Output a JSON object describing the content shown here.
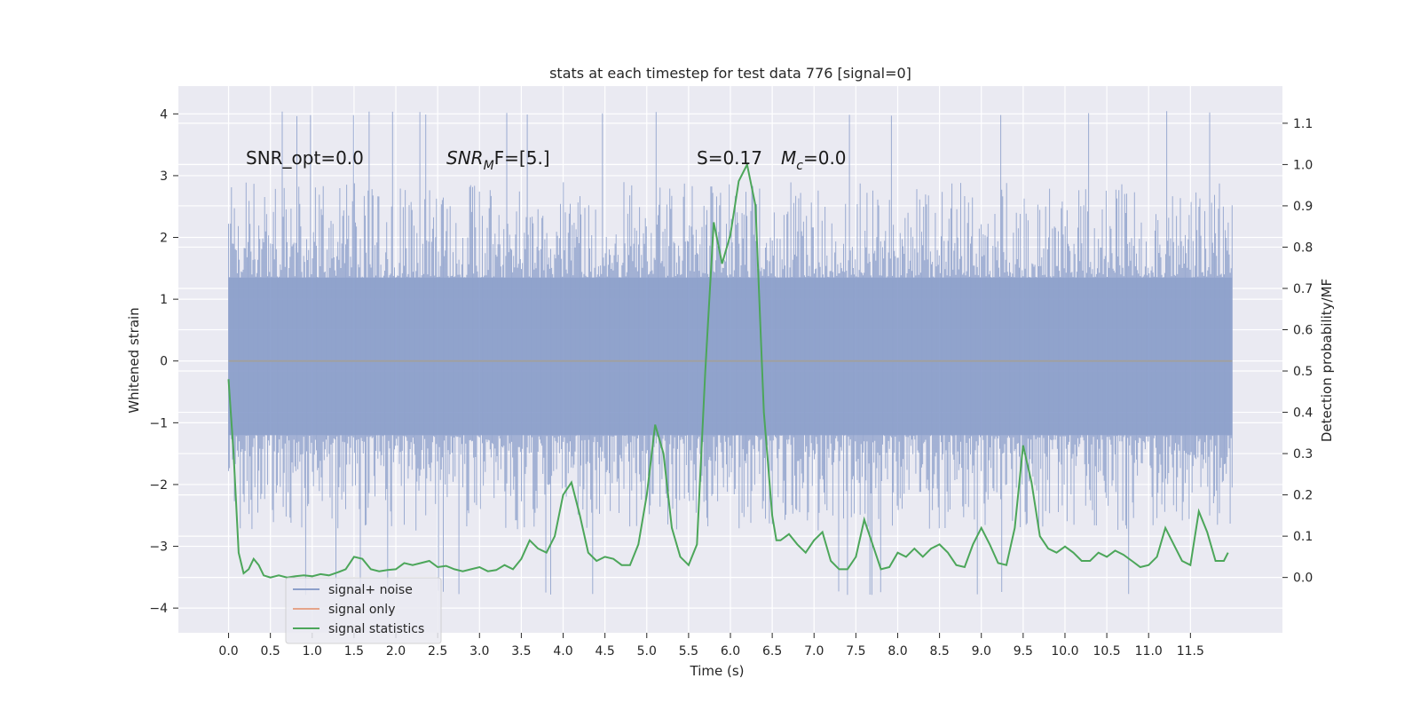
{
  "chart_data": {
    "type": "line",
    "title": "stats at each timestep for test data 776 [signal=0]",
    "xlabel": "Time (s)",
    "ylabel_left": "Whitened strain",
    "ylabel_right": "Detection probability/MF",
    "xlim": [
      -0.6,
      12.6
    ],
    "ylim_left": [
      -4.4,
      4.45
    ],
    "ylim_right": [
      -0.134,
      1.19
    ],
    "xticks": [
      "0.0",
      "0.5",
      "1.0",
      "1.5",
      "2.0",
      "2.5",
      "3.0",
      "3.5",
      "4.0",
      "4.5",
      "5.0",
      "5.5",
      "6.0",
      "6.5",
      "7.0",
      "7.5",
      "8.0",
      "8.5",
      "9.0",
      "9.5",
      "10.0",
      "10.5",
      "11.0",
      "11.5"
    ],
    "yticks_left": [
      "4",
      "3",
      "2",
      "1",
      "0",
      "−1",
      "−2",
      "−3",
      "−4"
    ],
    "yticks_right": [
      "1.1",
      "1.0",
      "0.9",
      "0.8",
      "0.7",
      "0.6",
      "0.5",
      "0.4",
      "0.3",
      "0.2",
      "0.1",
      "0.0"
    ],
    "grid": true,
    "legend_position": "lower-left",
    "annotations": [
      {
        "text": "SNR_opt=0.0"
      },
      {
        "text": "SNR",
        "sub": "M",
        "rest": "F=[5.]"
      },
      {
        "text": "S=0.17"
      },
      {
        "text": "M",
        "sub": "c",
        "rest": "=0.0"
      }
    ],
    "series": [
      {
        "name": "signal+ noise",
        "axis": "left",
        "color": "#8da0cb",
        "description": "whitened noise, dense samples 0.0 to 12.0 s",
        "envelope_core": [
          -1.2,
          1.35
        ],
        "range": [
          -3.8,
          4.1
        ]
      },
      {
        "name": "signal only",
        "axis": "left",
        "color": "#e5a48a",
        "x": [
          0.0,
          12.0
        ],
        "y": [
          0.0,
          0.0
        ]
      },
      {
        "name": "signal statistics",
        "axis": "right",
        "color": "#4ca65a",
        "x": [
          0.0,
          0.06,
          0.12,
          0.18,
          0.24,
          0.3,
          0.36,
          0.42,
          0.5,
          0.6,
          0.7,
          0.8,
          0.9,
          1.0,
          1.1,
          1.2,
          1.3,
          1.4,
          1.5,
          1.6,
          1.7,
          1.8,
          1.9,
          2.0,
          2.1,
          2.2,
          2.3,
          2.4,
          2.5,
          2.6,
          2.7,
          2.8,
          2.9,
          3.0,
          3.1,
          3.2,
          3.3,
          3.4,
          3.5,
          3.6,
          3.7,
          3.8,
          3.9,
          4.0,
          4.1,
          4.2,
          4.3,
          4.4,
          4.5,
          4.6,
          4.7,
          4.8,
          4.9,
          5.0,
          5.1,
          5.2,
          5.3,
          5.4,
          5.5,
          5.6,
          5.7,
          5.8,
          5.9,
          6.0,
          6.1,
          6.2,
          6.3,
          6.4,
          6.5,
          6.55,
          6.6,
          6.7,
          6.8,
          6.9,
          7.0,
          7.1,
          7.2,
          7.3,
          7.4,
          7.5,
          7.6,
          7.7,
          7.8,
          7.9,
          8.0,
          8.1,
          8.2,
          8.3,
          8.4,
          8.5,
          8.6,
          8.7,
          8.8,
          8.9,
          9.0,
          9.1,
          9.2,
          9.3,
          9.4,
          9.5,
          9.6,
          9.7,
          9.8,
          9.9,
          10.0,
          10.1,
          10.2,
          10.3,
          10.4,
          10.5,
          10.6,
          10.7,
          10.8,
          10.9,
          11.0,
          11.1,
          11.2,
          11.3,
          11.4,
          11.5,
          11.6,
          11.7,
          11.8,
          11.9,
          11.95
        ],
        "y": [
          0.48,
          0.3,
          0.06,
          0.01,
          0.02,
          0.045,
          0.03,
          0.005,
          0.0,
          0.005,
          0.0,
          0.003,
          0.005,
          0.003,
          0.008,
          0.005,
          0.012,
          0.02,
          0.05,
          0.045,
          0.02,
          0.015,
          0.018,
          0.02,
          0.035,
          0.03,
          0.035,
          0.04,
          0.025,
          0.028,
          0.02,
          0.015,
          0.02,
          0.025,
          0.015,
          0.018,
          0.03,
          0.02,
          0.045,
          0.09,
          0.07,
          0.06,
          0.1,
          0.2,
          0.23,
          0.15,
          0.06,
          0.04,
          0.05,
          0.045,
          0.03,
          0.03,
          0.08,
          0.2,
          0.37,
          0.3,
          0.12,
          0.05,
          0.03,
          0.08,
          0.5,
          0.86,
          0.76,
          0.83,
          0.96,
          1.0,
          0.9,
          0.4,
          0.15,
          0.09,
          0.09,
          0.105,
          0.08,
          0.06,
          0.09,
          0.11,
          0.04,
          0.02,
          0.02,
          0.05,
          0.14,
          0.08,
          0.02,
          0.025,
          0.06,
          0.05,
          0.07,
          0.05,
          0.07,
          0.08,
          0.06,
          0.03,
          0.025,
          0.08,
          0.12,
          0.08,
          0.035,
          0.03,
          0.12,
          0.32,
          0.23,
          0.1,
          0.07,
          0.06,
          0.075,
          0.06,
          0.04,
          0.04,
          0.06,
          0.05,
          0.065,
          0.055,
          0.04,
          0.025,
          0.03,
          0.05,
          0.12,
          0.08,
          0.04,
          0.03,
          0.16,
          0.11,
          0.04,
          0.04,
          0.06
        ]
      }
    ]
  }
}
